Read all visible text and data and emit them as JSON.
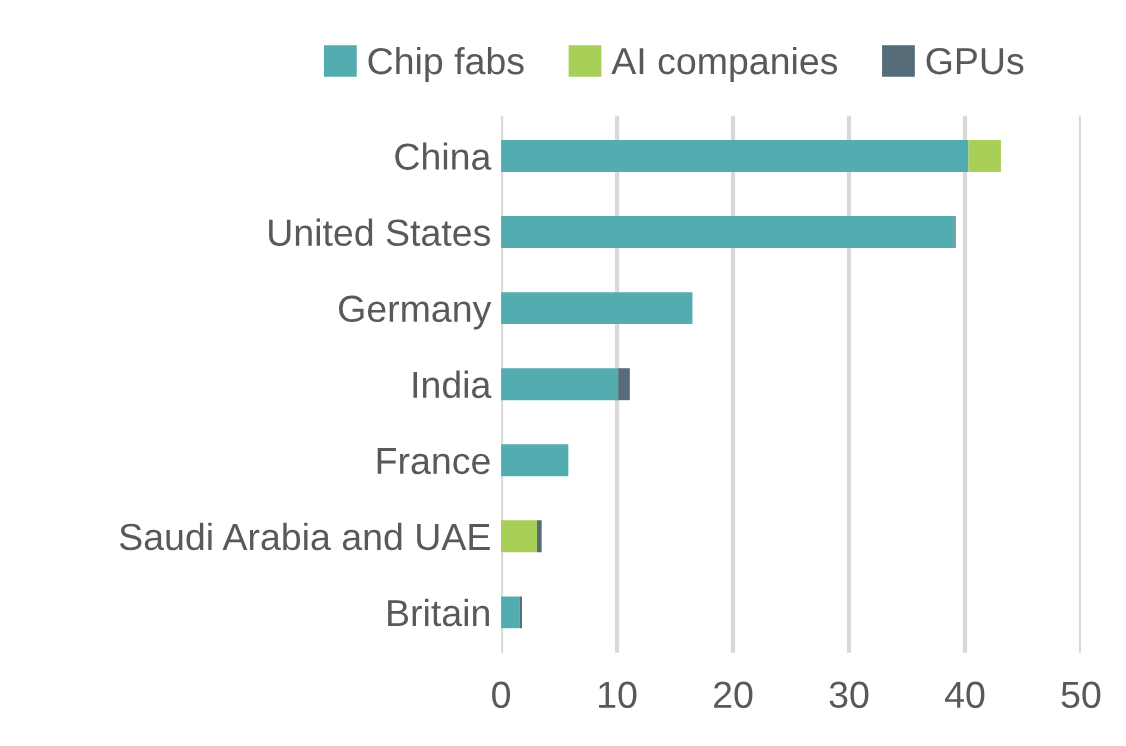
{
  "chart_data": {
    "type": "bar",
    "orientation": "horizontal",
    "stacked": true,
    "categories": [
      "China",
      "United States",
      "Germany",
      "India",
      "France",
      "Saudi Arabia and UAE",
      "Britain"
    ],
    "series": [
      {
        "name": "Chip fabs",
        "color": "#52acb0",
        "values": [
          40.3,
          39.1,
          16.5,
          10.1,
          5.8,
          0,
          1.6
        ]
      },
      {
        "name": "AI companies",
        "color": "#a8cf57",
        "values": [
          2.8,
          0,
          0,
          0,
          0,
          3.1,
          0
        ]
      },
      {
        "name": "GPUs",
        "color": "#566c78",
        "values": [
          0,
          0.1,
          0,
          1.0,
          0,
          0.4,
          0.2
        ]
      }
    ],
    "xlim": [
      0,
      50
    ],
    "xticks": [
      0,
      10,
      20,
      30,
      40,
      50
    ],
    "grid": "x",
    "legend": "top"
  }
}
